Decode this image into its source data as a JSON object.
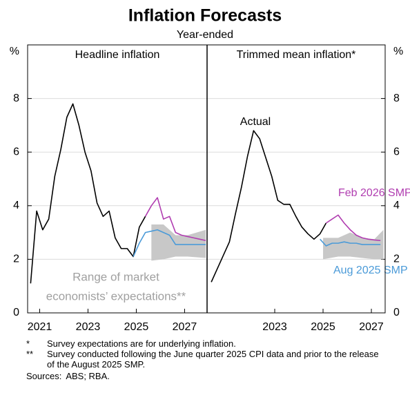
{
  "title": "Inflation Forecasts",
  "subtitle": "Year-ended",
  "chart_data": [
    {
      "type": "line",
      "title": "Headline inflation",
      "y_label": "%",
      "xlim": [
        2020.5,
        2027.93
      ],
      "xticks": [
        2021,
        2023,
        2025,
        2027
      ],
      "ylim": [
        0,
        10
      ],
      "yticks": [
        0,
        2,
        4,
        6,
        8
      ],
      "grid": true,
      "series": [
        {
          "color": "#000000",
          "x": [
            2020.625,
            2020.875,
            2021.125,
            2021.375,
            2021.625,
            2021.875,
            2022.125,
            2022.375,
            2022.625,
            2022.875,
            2023.125,
            2023.375,
            2023.625,
            2023.875,
            2024.125,
            2024.375,
            2024.625,
            2024.875,
            2025.125,
            2025.375
          ],
          "values": [
            1.1,
            3.8,
            3.1,
            3.5,
            5.1,
            6.1,
            7.3,
            7.8,
            7.0,
            6.0,
            5.3,
            4.1,
            3.6,
            3.8,
            2.8,
            2.4,
            2.4,
            2.1,
            3.2,
            3.6
          ]
        },
        {
          "color": "#b03cb0",
          "x": [
            2025.375,
            2025.625,
            2025.875,
            2026.125,
            2026.375,
            2026.625,
            2026.875,
            2027.125,
            2027.375,
            2027.625,
            2027.875
          ],
          "values": [
            3.6,
            4.0,
            4.3,
            3.5,
            3.6,
            3.0,
            2.9,
            2.85,
            2.8,
            2.75,
            2.7
          ]
        },
        {
          "color": "#4a9ad8",
          "x": [
            2024.875,
            2025.125,
            2025.375,
            2025.625,
            2025.875,
            2026.125,
            2026.375,
            2026.625,
            2026.875,
            2027.125,
            2027.375,
            2027.625,
            2027.875
          ],
          "values": [
            2.1,
            2.6,
            3.0,
            3.05,
            3.1,
            3.0,
            2.9,
            2.55,
            2.55,
            2.55,
            2.55,
            2.55,
            2.55
          ]
        }
      ],
      "bands": [
        {
          "name": [
            "Range of market",
            "economists’ expectations**"
          ],
          "color": "#c8c8c8",
          "label_color": "#a0a0a0",
          "x": [
            2025.625,
            2026.125,
            2026.625,
            2027.125,
            2027.875
          ],
          "upper": [
            3.3,
            3.3,
            2.9,
            2.9,
            3.1
          ],
          "lower": [
            1.95,
            2.0,
            2.1,
            2.1,
            2.05
          ]
        }
      ]
    },
    {
      "type": "line",
      "title": "Trimmed mean inflation*",
      "y_label": "%",
      "xlim": [
        2020.2,
        2027.57
      ],
      "xticks": [
        2023,
        2025,
        2027
      ],
      "ylim": [
        0,
        10
      ],
      "yticks": [
        0,
        2,
        4,
        6,
        8
      ],
      "grid": true,
      "series": [
        {
          "name": "Actual",
          "color": "#000000",
          "x": [
            2020.375,
            2020.625,
            2020.875,
            2021.125,
            2021.375,
            2021.625,
            2021.875,
            2022.125,
            2022.375,
            2022.625,
            2022.875,
            2023.125,
            2023.375,
            2023.625,
            2023.875,
            2024.125,
            2024.375,
            2024.625,
            2024.875,
            2025.125
          ],
          "values": [
            1.15,
            1.65,
            2.15,
            2.65,
            3.7,
            4.7,
            5.85,
            6.8,
            6.5,
            5.8,
            5.1,
            4.2,
            4.05,
            4.05,
            3.6,
            3.2,
            2.95,
            2.75,
            2.95,
            3.35
          ]
        },
        {
          "name": "Feb 2026 SMP",
          "color": "#b03cb0",
          "x": [
            2025.125,
            2025.375,
            2025.625,
            2025.875,
            2026.125,
            2026.375,
            2026.625,
            2026.875,
            2027.125,
            2027.375
          ],
          "values": [
            3.35,
            3.5,
            3.65,
            3.35,
            3.1,
            2.9,
            2.8,
            2.75,
            2.72,
            2.7
          ]
        },
        {
          "name": "Aug 2025 SMP",
          "color": "#4a9ad8",
          "x": [
            2024.875,
            2025.125,
            2025.375,
            2025.625,
            2025.875,
            2026.125,
            2026.375,
            2026.625,
            2026.875,
            2027.125,
            2027.375
          ],
          "values": [
            2.75,
            2.5,
            2.6,
            2.6,
            2.65,
            2.6,
            2.6,
            2.55,
            2.55,
            2.55,
            2.55
          ]
        }
      ],
      "bands": [
        {
          "color": "#c8c8c8",
          "x": [
            2025.0,
            2025.625,
            2026.125,
            2026.625,
            2027.125,
            2027.5
          ],
          "upper": [
            2.8,
            2.8,
            3.0,
            2.8,
            2.75,
            3.1
          ],
          "lower": [
            2.0,
            2.1,
            2.1,
            2.05,
            2.0,
            2.0
          ]
        }
      ]
    }
  ],
  "notes": [
    {
      "marker": "*",
      "text": "Survey expectations are for underlying inflation."
    },
    {
      "marker": "**",
      "text": "Survey conducted following the June quarter 2025 CPI data and prior to the release of the August 2025 SMP."
    }
  ],
  "sources": {
    "label": "Sources:",
    "text": "ABS; RBA."
  }
}
